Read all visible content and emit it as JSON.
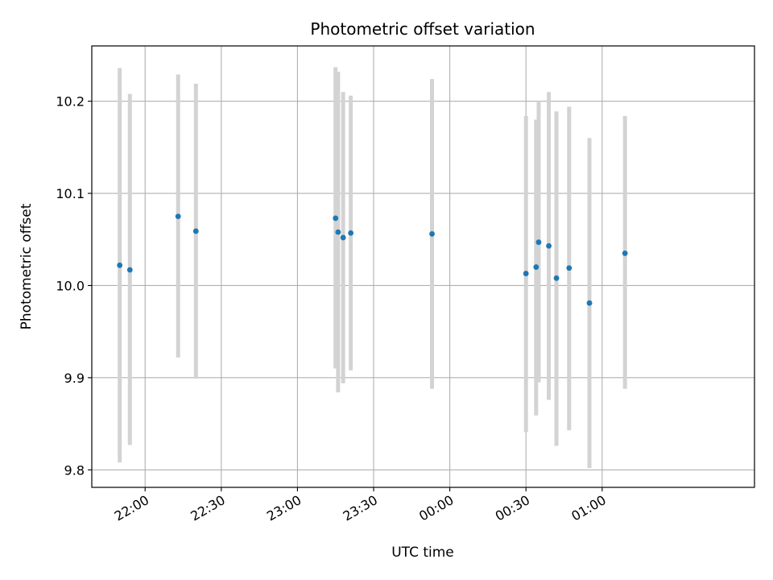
{
  "chart_data": {
    "type": "scatter",
    "title": "Photometric offset variation",
    "xlabel": "UTC time",
    "ylabel": "Photometric offset",
    "x_axis": {
      "kind": "time",
      "range": [
        "21:39",
        "02:00"
      ],
      "ticks": [
        "22:00",
        "22:30",
        "23:00",
        "23:30",
        "00:00",
        "00:30",
        "01:00"
      ],
      "tick_positions_minutes_after_midnight_start": [
        -120,
        -90,
        -60,
        -30,
        0,
        30,
        60
      ]
    },
    "y_axis": {
      "range": [
        9.781,
        10.26
      ],
      "ticks": [
        "9.8",
        "9.9",
        "10.0",
        "10.1",
        "10.2"
      ],
      "tick_values": [
        9.8,
        9.9,
        10.0,
        10.1,
        10.2
      ]
    },
    "grid": true,
    "colors": {
      "point": "#1f77b4",
      "errorbar": "#d3d3d3",
      "grid": "#b0b0b0"
    },
    "series": [
      {
        "points": [
          {
            "time": "21:50",
            "y": 10.022,
            "yerr_low": 9.808,
            "yerr_high": 10.236
          },
          {
            "time": "21:54",
            "y": 10.017,
            "yerr_low": 9.827,
            "yerr_high": 10.208
          },
          {
            "time": "22:13",
            "y": 10.075,
            "yerr_low": 9.922,
            "yerr_high": 10.229
          },
          {
            "time": "22:20",
            "y": 10.059,
            "yerr_low": 9.899,
            "yerr_high": 10.219
          },
          {
            "time": "23:15",
            "y": 10.073,
            "yerr_low": 9.91,
            "yerr_high": 10.237
          },
          {
            "time": "23:16",
            "y": 10.058,
            "yerr_low": 9.884,
            "yerr_high": 10.232
          },
          {
            "time": "23:18",
            "y": 10.052,
            "yerr_low": 9.894,
            "yerr_high": 10.21
          },
          {
            "time": "23:21",
            "y": 10.057,
            "yerr_low": 9.908,
            "yerr_high": 10.206
          },
          {
            "time": "23:53",
            "y": 10.056,
            "yerr_low": 9.888,
            "yerr_high": 10.224
          },
          {
            "time": "00:30",
            "y": 10.013,
            "yerr_low": 9.841,
            "yerr_high": 10.184
          },
          {
            "time": "00:34",
            "y": 10.02,
            "yerr_low": 9.859,
            "yerr_high": 10.18
          },
          {
            "time": "00:35",
            "y": 10.047,
            "yerr_low": 9.895,
            "yerr_high": 10.199
          },
          {
            "time": "00:39",
            "y": 10.043,
            "yerr_low": 9.876,
            "yerr_high": 10.21
          },
          {
            "time": "00:42",
            "y": 10.008,
            "yerr_low": 9.826,
            "yerr_high": 10.189
          },
          {
            "time": "00:47",
            "y": 10.019,
            "yerr_low": 9.843,
            "yerr_high": 10.194
          },
          {
            "time": "00:55",
            "y": 9.981,
            "yerr_low": 9.802,
            "yerr_high": 10.16
          },
          {
            "time": "01:09",
            "y": 10.035,
            "yerr_low": 9.888,
            "yerr_high": 10.184
          }
        ]
      }
    ]
  }
}
